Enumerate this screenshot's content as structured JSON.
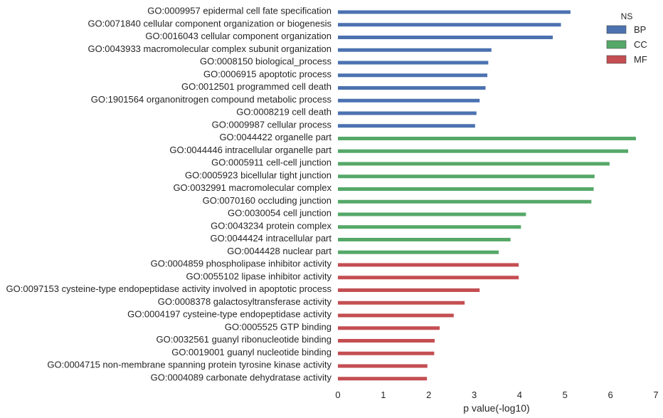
{
  "chart_data": {
    "type": "bar",
    "orientation": "horizontal",
    "xlabel": "p value(-log10)",
    "xlim": [
      0,
      7
    ],
    "xticks": [
      0,
      1,
      2,
      3,
      4,
      5,
      6,
      7
    ],
    "grid": false,
    "legend": {
      "title": "NS",
      "placement": "top-right",
      "entries": [
        {
          "name": "BP",
          "color": "#4c72b0"
        },
        {
          "name": "CC",
          "color": "#55a868"
        },
        {
          "name": "MF",
          "color": "#c44e52"
        }
      ]
    },
    "categories": [
      "GO:0009957 epidermal cell fate specification",
      "GO:0071840 cellular component organization or biogenesis",
      "GO:0016043 cellular component organization",
      "GO:0043933 macromolecular complex subunit organization",
      "GO:0008150 biological_process",
      "GO:0006915 apoptotic process",
      "GO:0012501 programmed cell death",
      "GO:1901564 organonitrogen compound metabolic process",
      "GO:0008219 cell death",
      "GO:0009987 cellular process",
      "GO:0044422 organelle part",
      "GO:0044446 intracellular organelle part",
      "GO:0005911 cell-cell junction",
      "GO:0005923 bicellular tight junction",
      "GO:0032991 macromolecular complex",
      "GO:0070160 occluding junction",
      "GO:0030054 cell junction",
      "GO:0043234 protein complex",
      "GO:0044424 intracellular part",
      "GO:0044428 nuclear part",
      "GO:0004859 phospholipase inhibitor activity",
      "GO:0055102 lipase inhibitor activity",
      "GO:0097153 cysteine-type endopeptidase activity involved in apoptotic process",
      "GO:0008378 galactosyltransferase activity",
      "GO:0004197 cysteine-type endopeptidase activity",
      "GO:0005525 GTP binding",
      "GO:0032561 guanyl ribonucleotide binding",
      "GO:0019001 guanyl nucleotide binding",
      "GO:0004715 non-membrane spanning protein tyrosine kinase activity",
      "GO:0004089 carbonate dehydratase activity"
    ],
    "values": [
      5.12,
      4.91,
      4.73,
      3.38,
      3.31,
      3.29,
      3.25,
      3.12,
      3.05,
      3.02,
      6.56,
      6.39,
      5.98,
      5.65,
      5.63,
      5.58,
      4.14,
      4.03,
      3.8,
      3.54,
      3.98,
      3.98,
      3.12,
      2.79,
      2.55,
      2.24,
      2.13,
      2.12,
      1.97,
      1.96
    ],
    "groups": [
      "BP",
      "BP",
      "BP",
      "BP",
      "BP",
      "BP",
      "BP",
      "BP",
      "BP",
      "BP",
      "CC",
      "CC",
      "CC",
      "CC",
      "CC",
      "CC",
      "CC",
      "CC",
      "CC",
      "CC",
      "MF",
      "MF",
      "MF",
      "MF",
      "MF",
      "MF",
      "MF",
      "MF",
      "MF",
      "MF"
    ]
  }
}
